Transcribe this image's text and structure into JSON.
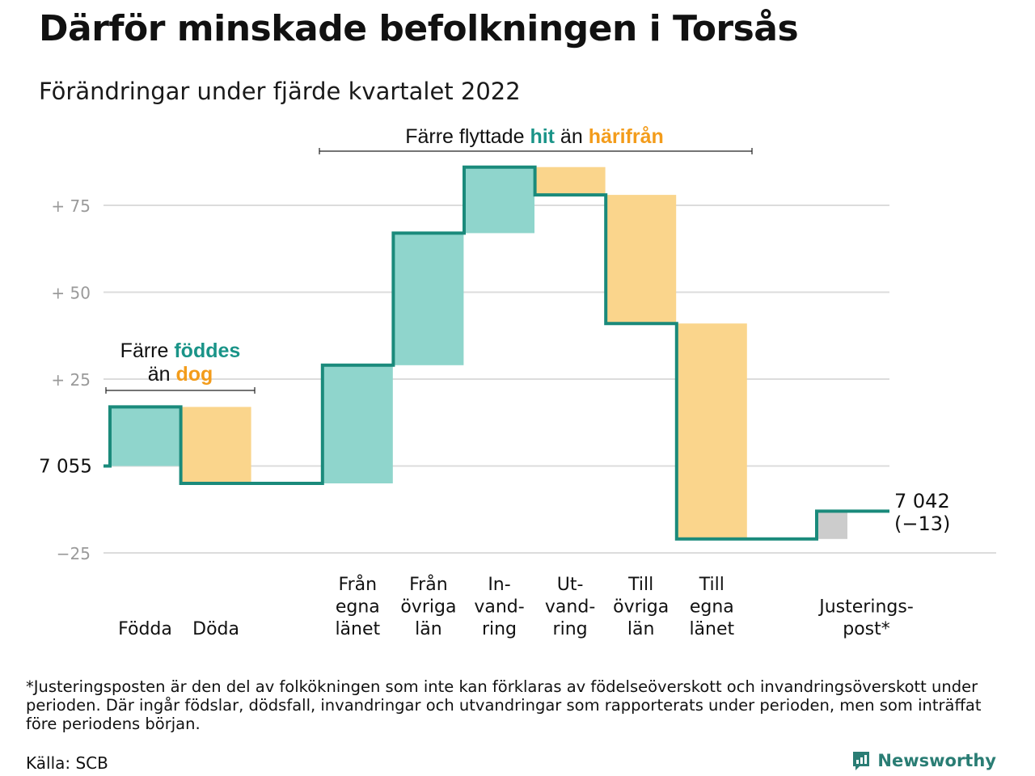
{
  "title": "Därför minskade befolkningen i Torsås",
  "subtitle": "Förändringar under fjärde kvartalet 2022",
  "colors": {
    "inflow": "#8fd5cc",
    "outflow": "#fad58c",
    "adjust": "#cccccc",
    "line": "#1a8a7b",
    "hit": "#1a9488",
    "harifran": "#f39c1b"
  },
  "chart_data": {
    "type": "waterfall",
    "start_value": 7055,
    "start_label": "7 055",
    "end_label": "7 042",
    "end_change_label": "(−13)",
    "y_ticks": [
      {
        "value": 75,
        "label": "+ 75"
      },
      {
        "value": 50,
        "label": "+ 50"
      },
      {
        "value": 25,
        "label": "+ 25"
      },
      {
        "value": 0,
        "label": ""
      },
      {
        "value": -25,
        "label": "−25"
      }
    ],
    "ylim": [
      -25,
      85
    ],
    "grid": true,
    "steps": [
      {
        "label": [
          "Födda"
        ],
        "change": 17,
        "kind": "inflow"
      },
      {
        "label": [
          "Döda"
        ],
        "change": -22,
        "kind": "outflow"
      },
      {
        "label": [
          "Från",
          "egna",
          "länet"
        ],
        "change": 34,
        "kind": "inflow"
      },
      {
        "label": [
          "Från",
          "övriga",
          "län"
        ],
        "change": 38,
        "kind": "inflow"
      },
      {
        "label": [
          "In-",
          "vand-",
          "ring"
        ],
        "change": 19,
        "kind": "inflow"
      },
      {
        "label": [
          "Ut-",
          "vand-",
          "ring"
        ],
        "change": -8,
        "kind": "outflow"
      },
      {
        "label": [
          "Till",
          "övriga",
          "län"
        ],
        "change": -37,
        "kind": "outflow"
      },
      {
        "label": [
          "Till",
          "egna",
          "länet"
        ],
        "change": -62,
        "kind": "outflow"
      },
      {
        "label": [
          "Justerings-",
          "post*"
        ],
        "change": 8,
        "kind": "adjust"
      }
    ],
    "annotations": {
      "births": {
        "line1_pre": "Färre ",
        "line1_hl": "föddes",
        "line2_pre": "än ",
        "line2_hl": "dog"
      },
      "migration": {
        "pre": "Färre flyttade ",
        "hl1": "hit",
        "mid": " än ",
        "hl2": "härifrån"
      }
    }
  },
  "footnote": "*Justeringsposten är den del av folkökningen som inte kan förklaras av födelseöverskott och invandringsöverskott under perioden. Där ingår födslar, dödsfall, invandringar och utvandringar som rapporterats under perioden, men som inträffat före periodens början.",
  "source": "Källa: SCB",
  "brand": "Newsworthy"
}
